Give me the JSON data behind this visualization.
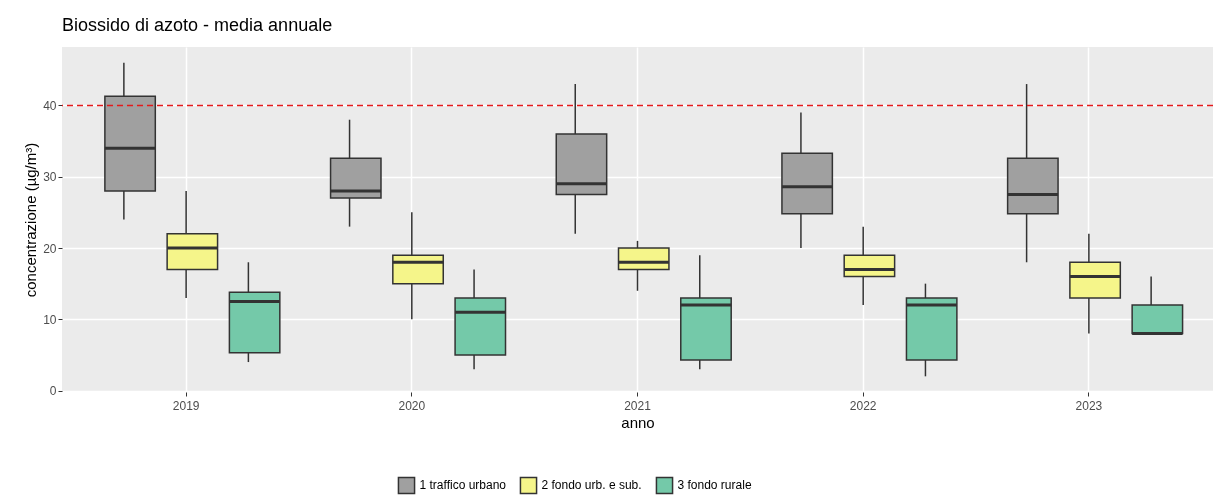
{
  "chart_data": {
    "type": "box",
    "title": "Biossido di azoto - media annuale",
    "xlabel": "anno",
    "ylabel": "concentrazione (µg/m³)",
    "categories": [
      "2019",
      "2020",
      "2021",
      "2022",
      "2023"
    ],
    "ylim": [
      -0.2,
      48.2
    ],
    "yticks": [
      0,
      10,
      20,
      30,
      40
    ],
    "grid": true,
    "legend": "bottom",
    "ref_lines": [
      {
        "axis": "y",
        "value": 40,
        "color": "#e41a1c",
        "line_style": "dashed"
      }
    ],
    "series": [
      {
        "name": "1 traffico urbano",
        "color": "#a0a0a0",
        "boxes": [
          {
            "low": 24,
            "q1": 28,
            "median": 34,
            "q3": 41.3,
            "high": 46
          },
          {
            "low": 23,
            "q1": 27,
            "median": 28,
            "q3": 32.6,
            "high": 38
          },
          {
            "low": 22,
            "q1": 27.5,
            "median": 29,
            "q3": 36,
            "high": 43
          },
          {
            "low": 20,
            "q1": 24.8,
            "median": 28.6,
            "q3": 33.3,
            "high": 39
          },
          {
            "low": 18,
            "q1": 24.8,
            "median": 27.5,
            "q3": 32.6,
            "high": 43
          }
        ]
      },
      {
        "name": "2 fondo urb. e sub.",
        "color": "#f5f58a",
        "boxes": [
          {
            "low": 13,
            "q1": 17,
            "median": 20,
            "q3": 22,
            "high": 28
          },
          {
            "low": 10,
            "q1": 15,
            "median": 18,
            "q3": 19,
            "high": 25
          },
          {
            "low": 14,
            "q1": 17,
            "median": 18,
            "q3": 20,
            "high": 21
          },
          {
            "low": 12,
            "q1": 16,
            "median": 17,
            "q3": 19,
            "high": 23
          },
          {
            "low": 8,
            "q1": 13,
            "median": 16,
            "q3": 18,
            "high": 22
          }
        ]
      },
      {
        "name": "3 fondo rurale",
        "color": "#74c9a9",
        "boxes": [
          {
            "low": 4,
            "q1": 5.3,
            "median": 12.5,
            "q3": 13.8,
            "high": 18
          },
          {
            "low": 3,
            "q1": 5,
            "median": 11,
            "q3": 13,
            "high": 17
          },
          {
            "low": 3,
            "q1": 4.3,
            "median": 12,
            "q3": 13,
            "high": 19
          },
          {
            "low": 2,
            "q1": 4.3,
            "median": 12,
            "q3": 13,
            "high": 15
          },
          {
            "low": 8,
            "q1": 8,
            "median": 8,
            "q3": 12,
            "high": 16
          }
        ]
      }
    ]
  }
}
